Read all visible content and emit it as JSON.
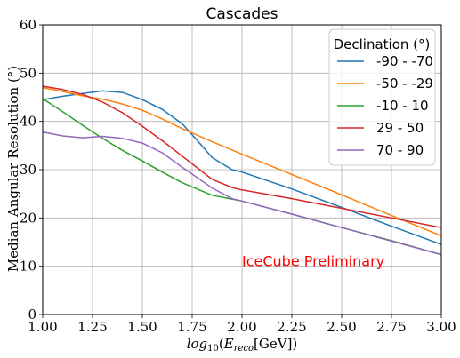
{
  "chart_data": {
    "type": "line",
    "title": "Cascades",
    "xlabel": "log10(E_reco[GeV])",
    "ylabel": "Median Angular Resolution (°)",
    "xlim": [
      1.0,
      3.0
    ],
    "ylim": [
      0,
      60
    ],
    "xticks": [
      "1.00",
      "1.25",
      "1.50",
      "1.75",
      "2.00",
      "2.25",
      "2.50",
      "2.75",
      "3.00"
    ],
    "yticks": [
      "0",
      "10",
      "20",
      "30",
      "40",
      "50",
      "60"
    ],
    "grid": true,
    "legend": {
      "title": "Declination (°)",
      "placement": "top-right"
    },
    "annotation": {
      "text": "IceCube Preliminary",
      "x": 2.0,
      "y": 10,
      "color": "#ff0000"
    },
    "series": [
      {
        "name": "-90 - -70",
        "color": "#1f77b4",
        "x": [
          1.0,
          1.1,
          1.2,
          1.3,
          1.4,
          1.5,
          1.6,
          1.7,
          1.77,
          1.85,
          1.95,
          2.0,
          2.25,
          2.5,
          2.75,
          3.0
        ],
        "y": [
          44.5,
          45.2,
          45.8,
          46.3,
          46.0,
          44.5,
          42.5,
          39.5,
          36.3,
          32.5,
          30.0,
          29.5,
          26.0,
          22.2,
          18.3,
          14.5
        ]
      },
      {
        "name": "-50 - -29",
        "color": "#ff7f0e",
        "x": [
          1.0,
          1.1,
          1.2,
          1.3,
          1.4,
          1.5,
          1.6,
          1.7,
          1.85,
          2.0,
          2.25,
          2.5,
          2.75,
          3.0
        ],
        "y": [
          47.0,
          46.2,
          45.3,
          44.6,
          43.6,
          42.3,
          40.5,
          38.5,
          35.8,
          33.2,
          29.0,
          24.8,
          20.5,
          16.3
        ]
      },
      {
        "name": "-10 - 10",
        "color": "#2ca02c",
        "x": [
          1.0,
          1.1,
          1.2,
          1.3,
          1.4,
          1.5,
          1.6,
          1.7,
          1.85,
          2.0,
          2.25,
          2.5,
          2.75,
          3.0
        ],
        "y": [
          44.7,
          42.0,
          39.2,
          36.5,
          34.0,
          31.8,
          29.5,
          27.3,
          24.7,
          23.5,
          20.8,
          18.0,
          15.3,
          12.4
        ]
      },
      {
        "name": "29 - 50",
        "color": "#d62728",
        "x": [
          1.0,
          1.1,
          1.2,
          1.3,
          1.4,
          1.5,
          1.6,
          1.7,
          1.85,
          1.95,
          2.0,
          2.25,
          2.5,
          2.75,
          3.0
        ],
        "y": [
          47.3,
          46.6,
          45.6,
          44.0,
          41.8,
          39.0,
          36.0,
          32.8,
          28.0,
          26.3,
          25.8,
          24.0,
          22.0,
          20.0,
          18.0
        ]
      },
      {
        "name": "70 - 90",
        "color": "#9467bd",
        "x": [
          1.0,
          1.1,
          1.2,
          1.3,
          1.4,
          1.5,
          1.6,
          1.7,
          1.85,
          1.95,
          2.0,
          2.25,
          2.5,
          2.75,
          3.0
        ],
        "y": [
          37.8,
          37.0,
          36.6,
          36.9,
          36.5,
          35.5,
          33.5,
          30.5,
          26.2,
          24.0,
          23.5,
          20.8,
          18.0,
          15.2,
          12.4
        ]
      }
    ]
  }
}
